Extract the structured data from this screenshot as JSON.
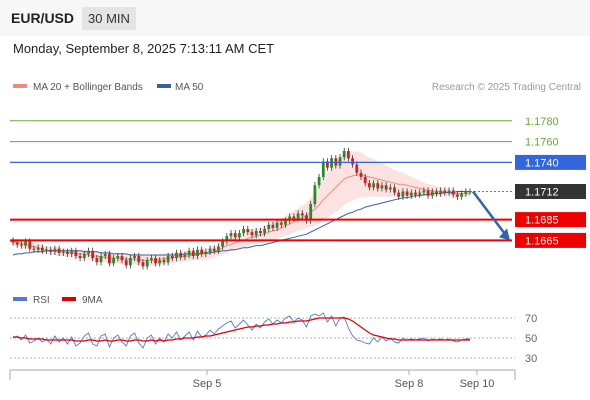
{
  "header": {
    "pair": "EUR/USD",
    "timeframe": "30 MIN"
  },
  "datetime": "Monday, September 8, 2025 7:13:11 AM CET",
  "legend": {
    "ma20_label": "MA 20 + Bollinger Bands",
    "ma50_label": "MA 50",
    "credit": "Research © 2025 Trading Central",
    "rsi_label": "RSI",
    "rsi_ma_label": "9MA"
  },
  "colors": {
    "ma20": "#f08a80",
    "ma50": "#3a5fa0",
    "up": "#2a8a2a",
    "down": "#cc2222",
    "support": "#ee0000",
    "resistance_green": "#66aa33",
    "pivot": "#3366dd",
    "price_tag": "#333333",
    "arrow": "#2f65a8",
    "rsi": "#5577dd",
    "rsi_ma": "#dd0000"
  },
  "chart_data": [
    {
      "type": "candlestick",
      "title": "EUR/USD 30 MIN",
      "ylim": [
        1.1625,
        1.18
      ],
      "x_labels": [
        "Sep 5",
        "Sep 8",
        "Sep 10"
      ],
      "levels": [
        {
          "value": 1.178,
          "label": "1.1780",
          "kind": "resistance"
        },
        {
          "value": 1.176,
          "label": "1.1760",
          "kind": "resistance"
        },
        {
          "value": 1.174,
          "label": "1.1740",
          "kind": "pivot"
        },
        {
          "value": 1.1712,
          "label": "1.1712",
          "kind": "current"
        },
        {
          "value": 1.1685,
          "label": "1.1685",
          "kind": "support"
        },
        {
          "value": 1.1665,
          "label": "1.1665",
          "kind": "support"
        }
      ],
      "forecast": {
        "from": 1.1712,
        "to": 1.1665
      },
      "close": [
        1.1663,
        1.1661,
        1.166,
        1.1664,
        1.1657,
        1.1656,
        1.1658,
        1.1655,
        1.1656,
        1.1654,
        1.1657,
        1.1653,
        1.1654,
        1.1652,
        1.1655,
        1.165,
        1.1648,
        1.1652,
        1.1655,
        1.1648,
        1.1644,
        1.165,
        1.1652,
        1.1643,
        1.1648,
        1.165,
        1.1646,
        1.1641,
        1.1648,
        1.165,
        1.1644,
        1.164,
        1.1646,
        1.1648,
        1.1643,
        1.1646,
        1.1644,
        1.165,
        1.1648,
        1.1653,
        1.1649,
        1.1651,
        1.1655,
        1.165,
        1.1656,
        1.1652,
        1.1654,
        1.1657,
        1.1655,
        1.1659,
        1.1664,
        1.1669,
        1.1672,
        1.1668,
        1.1672,
        1.1676,
        1.1673,
        1.167,
        1.1674,
        1.1672,
        1.1676,
        1.168,
        1.1677,
        1.1682,
        1.168,
        1.1684,
        1.1688,
        1.1686,
        1.1691,
        1.1689,
        1.1684,
        1.17,
        1.1718,
        1.1726,
        1.1741,
        1.1735,
        1.1744,
        1.1737,
        1.1745,
        1.1751,
        1.1744,
        1.1738,
        1.173,
        1.1726,
        1.172,
        1.1716,
        1.172,
        1.1715,
        1.1718,
        1.1714,
        1.1716,
        1.1711,
        1.1707,
        1.1712,
        1.1708,
        1.1711,
        1.1709,
        1.1711,
        1.1713,
        1.1708,
        1.1712,
        1.171,
        1.1713,
        1.1711,
        1.1713,
        1.1709,
        1.1707,
        1.171,
        1.1712,
        1.1712
      ],
      "ma20": [
        1.1664,
        1.1663,
        1.1662,
        1.1661,
        1.166,
        1.1659,
        1.1658,
        1.1657,
        1.1656,
        1.1655,
        1.1655,
        1.1654,
        1.1654,
        1.1653,
        1.1653,
        1.1652,
        1.1652,
        1.1652,
        1.1651,
        1.165,
        1.165,
        1.1649,
        1.1649,
        1.1648,
        1.1648,
        1.1648,
        1.1647,
        1.1647,
        1.1647,
        1.1647,
        1.1646,
        1.1646,
        1.1646,
        1.1646,
        1.1646,
        1.1647,
        1.1647,
        1.1648,
        1.1648,
        1.1649,
        1.1649,
        1.165,
        1.165,
        1.1651,
        1.1651,
        1.1652,
        1.1652,
        1.1653,
        1.1654,
        1.1656,
        1.1658,
        1.166,
        1.1661,
        1.1663,
        1.1664,
        1.1665,
        1.1667,
        1.1668,
        1.1669,
        1.167,
        1.1671,
        1.1673,
        1.1674,
        1.1675,
        1.1677,
        1.1679,
        1.1681,
        1.1683,
        1.1685,
        1.1687,
        1.1689,
        1.1692,
        1.1695,
        1.1699,
        1.1704,
        1.1708,
        1.1712,
        1.1716,
        1.172,
        1.1724,
        1.1726,
        1.1727,
        1.1728,
        1.1728,
        1.1727,
        1.1726,
        1.1725,
        1.1724,
        1.1723,
        1.1722,
        1.1721,
        1.172,
        1.1719,
        1.1719,
        1.1718,
        1.1717,
        1.1716,
        1.1715,
        1.1714,
        1.1713,
        1.1713,
        1.1712,
        1.1712,
        1.1711,
        1.1711,
        1.171,
        1.171,
        1.171,
        1.171,
        1.171
      ],
      "bb_width": [
        0.0006,
        0.0006,
        0.0007,
        0.0007,
        0.0007,
        0.0008,
        0.0008,
        0.0008,
        0.0008,
        0.0008,
        0.0008,
        0.0008,
        0.0008,
        0.0008,
        0.0008,
        0.0008,
        0.0008,
        0.0009,
        0.0009,
        0.0009,
        0.0009,
        0.0009,
        0.0009,
        0.001,
        0.001,
        0.001,
        0.001,
        0.001,
        0.001,
        0.001,
        0.001,
        0.001,
        0.001,
        0.001,
        0.001,
        0.001,
        0.001,
        0.001,
        0.001,
        0.001,
        0.001,
        0.001,
        0.001,
        0.001,
        0.001,
        0.0011,
        0.0011,
        0.0011,
        0.0012,
        0.0012,
        0.0013,
        0.0014,
        0.0014,
        0.0015,
        0.0015,
        0.0015,
        0.0015,
        0.0015,
        0.0015,
        0.0015,
        0.0016,
        0.0016,
        0.0017,
        0.0018,
        0.0018,
        0.0019,
        0.002,
        0.0021,
        0.0022,
        0.0023,
        0.0024,
        0.0028,
        0.0032,
        0.0036,
        0.004,
        0.0043,
        0.0045,
        0.0047,
        0.0049,
        0.005,
        0.0049,
        0.0047,
        0.0045,
        0.0043,
        0.004,
        0.0038,
        0.0036,
        0.0034,
        0.0032,
        0.003,
        0.0028,
        0.0026,
        0.0024,
        0.0022,
        0.002,
        0.0018,
        0.0016,
        0.0015,
        0.0013,
        0.0012,
        0.0011,
        0.001,
        0.0009,
        0.0008,
        0.0008,
        0.0007,
        0.0006,
        0.0006,
        0.0006,
        0.0006
      ],
      "ma50": [
        1.1651,
        1.1652,
        1.1652,
        1.1653,
        1.1653,
        1.1654,
        1.1654,
        1.1654,
        1.1655,
        1.1655,
        1.1655,
        1.1655,
        1.1655,
        1.1655,
        1.1655,
        1.1655,
        1.1655,
        1.1654,
        1.1654,
        1.1654,
        1.1654,
        1.1653,
        1.1653,
        1.1653,
        1.1652,
        1.1652,
        1.1652,
        1.1652,
        1.1651,
        1.1651,
        1.1651,
        1.1651,
        1.1651,
        1.1651,
        1.1651,
        1.1651,
        1.1651,
        1.1651,
        1.1651,
        1.1651,
        1.1651,
        1.1652,
        1.1652,
        1.1652,
        1.1652,
        1.1653,
        1.1653,
        1.1653,
        1.1654,
        1.1654,
        1.1655,
        1.1655,
        1.1656,
        1.1656,
        1.1657,
        1.1658,
        1.1658,
        1.1659,
        1.166,
        1.166,
        1.1661,
        1.1662,
        1.1663,
        1.1664,
        1.1665,
        1.1666,
        1.1667,
        1.1668,
        1.1669,
        1.167,
        1.1671,
        1.1673,
        1.1675,
        1.1677,
        1.1679,
        1.1681,
        1.1683,
        1.1685,
        1.1687,
        1.1689,
        1.1691,
        1.1692,
        1.1694,
        1.1695,
        1.1697,
        1.1698,
        1.1699,
        1.17,
        1.1701,
        1.1702,
        1.1703,
        1.1704,
        1.1705,
        1.1706,
        1.1706,
        1.1707,
        1.1708,
        1.1708,
        1.1709,
        1.1709,
        1.171,
        1.171,
        1.171,
        1.1711,
        1.1711,
        1.1711,
        1.1712,
        1.1712,
        1.1712,
        1.1712
      ]
    },
    {
      "type": "line",
      "title": "RSI",
      "ylim": [
        20,
        80
      ],
      "yticks": [
        70,
        50,
        30
      ],
      "series": [
        {
          "name": "RSI",
          "values": [
            50,
            52,
            48,
            53,
            45,
            47,
            50,
            46,
            49,
            44,
            52,
            46,
            50,
            44,
            51,
            42,
            45,
            52,
            55,
            44,
            42,
            52,
            54,
            41,
            50,
            53,
            46,
            42,
            52,
            55,
            45,
            40,
            50,
            53,
            44,
            50,
            46,
            54,
            50,
            56,
            48,
            52,
            56,
            48,
            57,
            51,
            53,
            58,
            54,
            59,
            62,
            65,
            67,
            60,
            64,
            68,
            63,
            58,
            64,
            60,
            66,
            69,
            64,
            68,
            65,
            70,
            72,
            66,
            70,
            68,
            61,
            72,
            74,
            72,
            75,
            66,
            72,
            62,
            70,
            71,
            60,
            52,
            48,
            47,
            45,
            44,
            50,
            46,
            51,
            47,
            50,
            46,
            45,
            50,
            48,
            49,
            48,
            49,
            50,
            47,
            49,
            48,
            49,
            48,
            49,
            47,
            46,
            48,
            49,
            49
          ]
        },
        {
          "name": "9MA",
          "values": [
            51,
            51,
            50,
            50,
            49,
            49,
            49,
            49,
            48,
            48,
            48,
            48,
            48,
            48,
            48,
            47,
            47,
            47,
            48,
            48,
            47,
            47,
            48,
            47,
            47,
            48,
            48,
            47,
            47,
            48,
            48,
            47,
            47,
            48,
            47,
            48,
            47,
            48,
            48,
            49,
            49,
            50,
            50,
            50,
            51,
            51,
            52,
            52,
            53,
            54,
            55,
            56,
            57,
            58,
            59,
            60,
            61,
            61,
            62,
            62,
            63,
            63,
            64,
            64,
            65,
            65,
            66,
            66,
            67,
            67,
            67,
            68,
            69,
            70,
            70,
            70,
            70,
            70,
            70,
            70,
            69,
            67,
            64,
            61,
            58,
            55,
            53,
            52,
            51,
            50,
            49,
            49,
            48,
            48,
            48,
            48,
            48,
            48,
            48,
            48,
            48,
            48,
            48,
            48,
            48,
            48,
            48,
            48,
            48,
            48
          ]
        }
      ]
    }
  ]
}
